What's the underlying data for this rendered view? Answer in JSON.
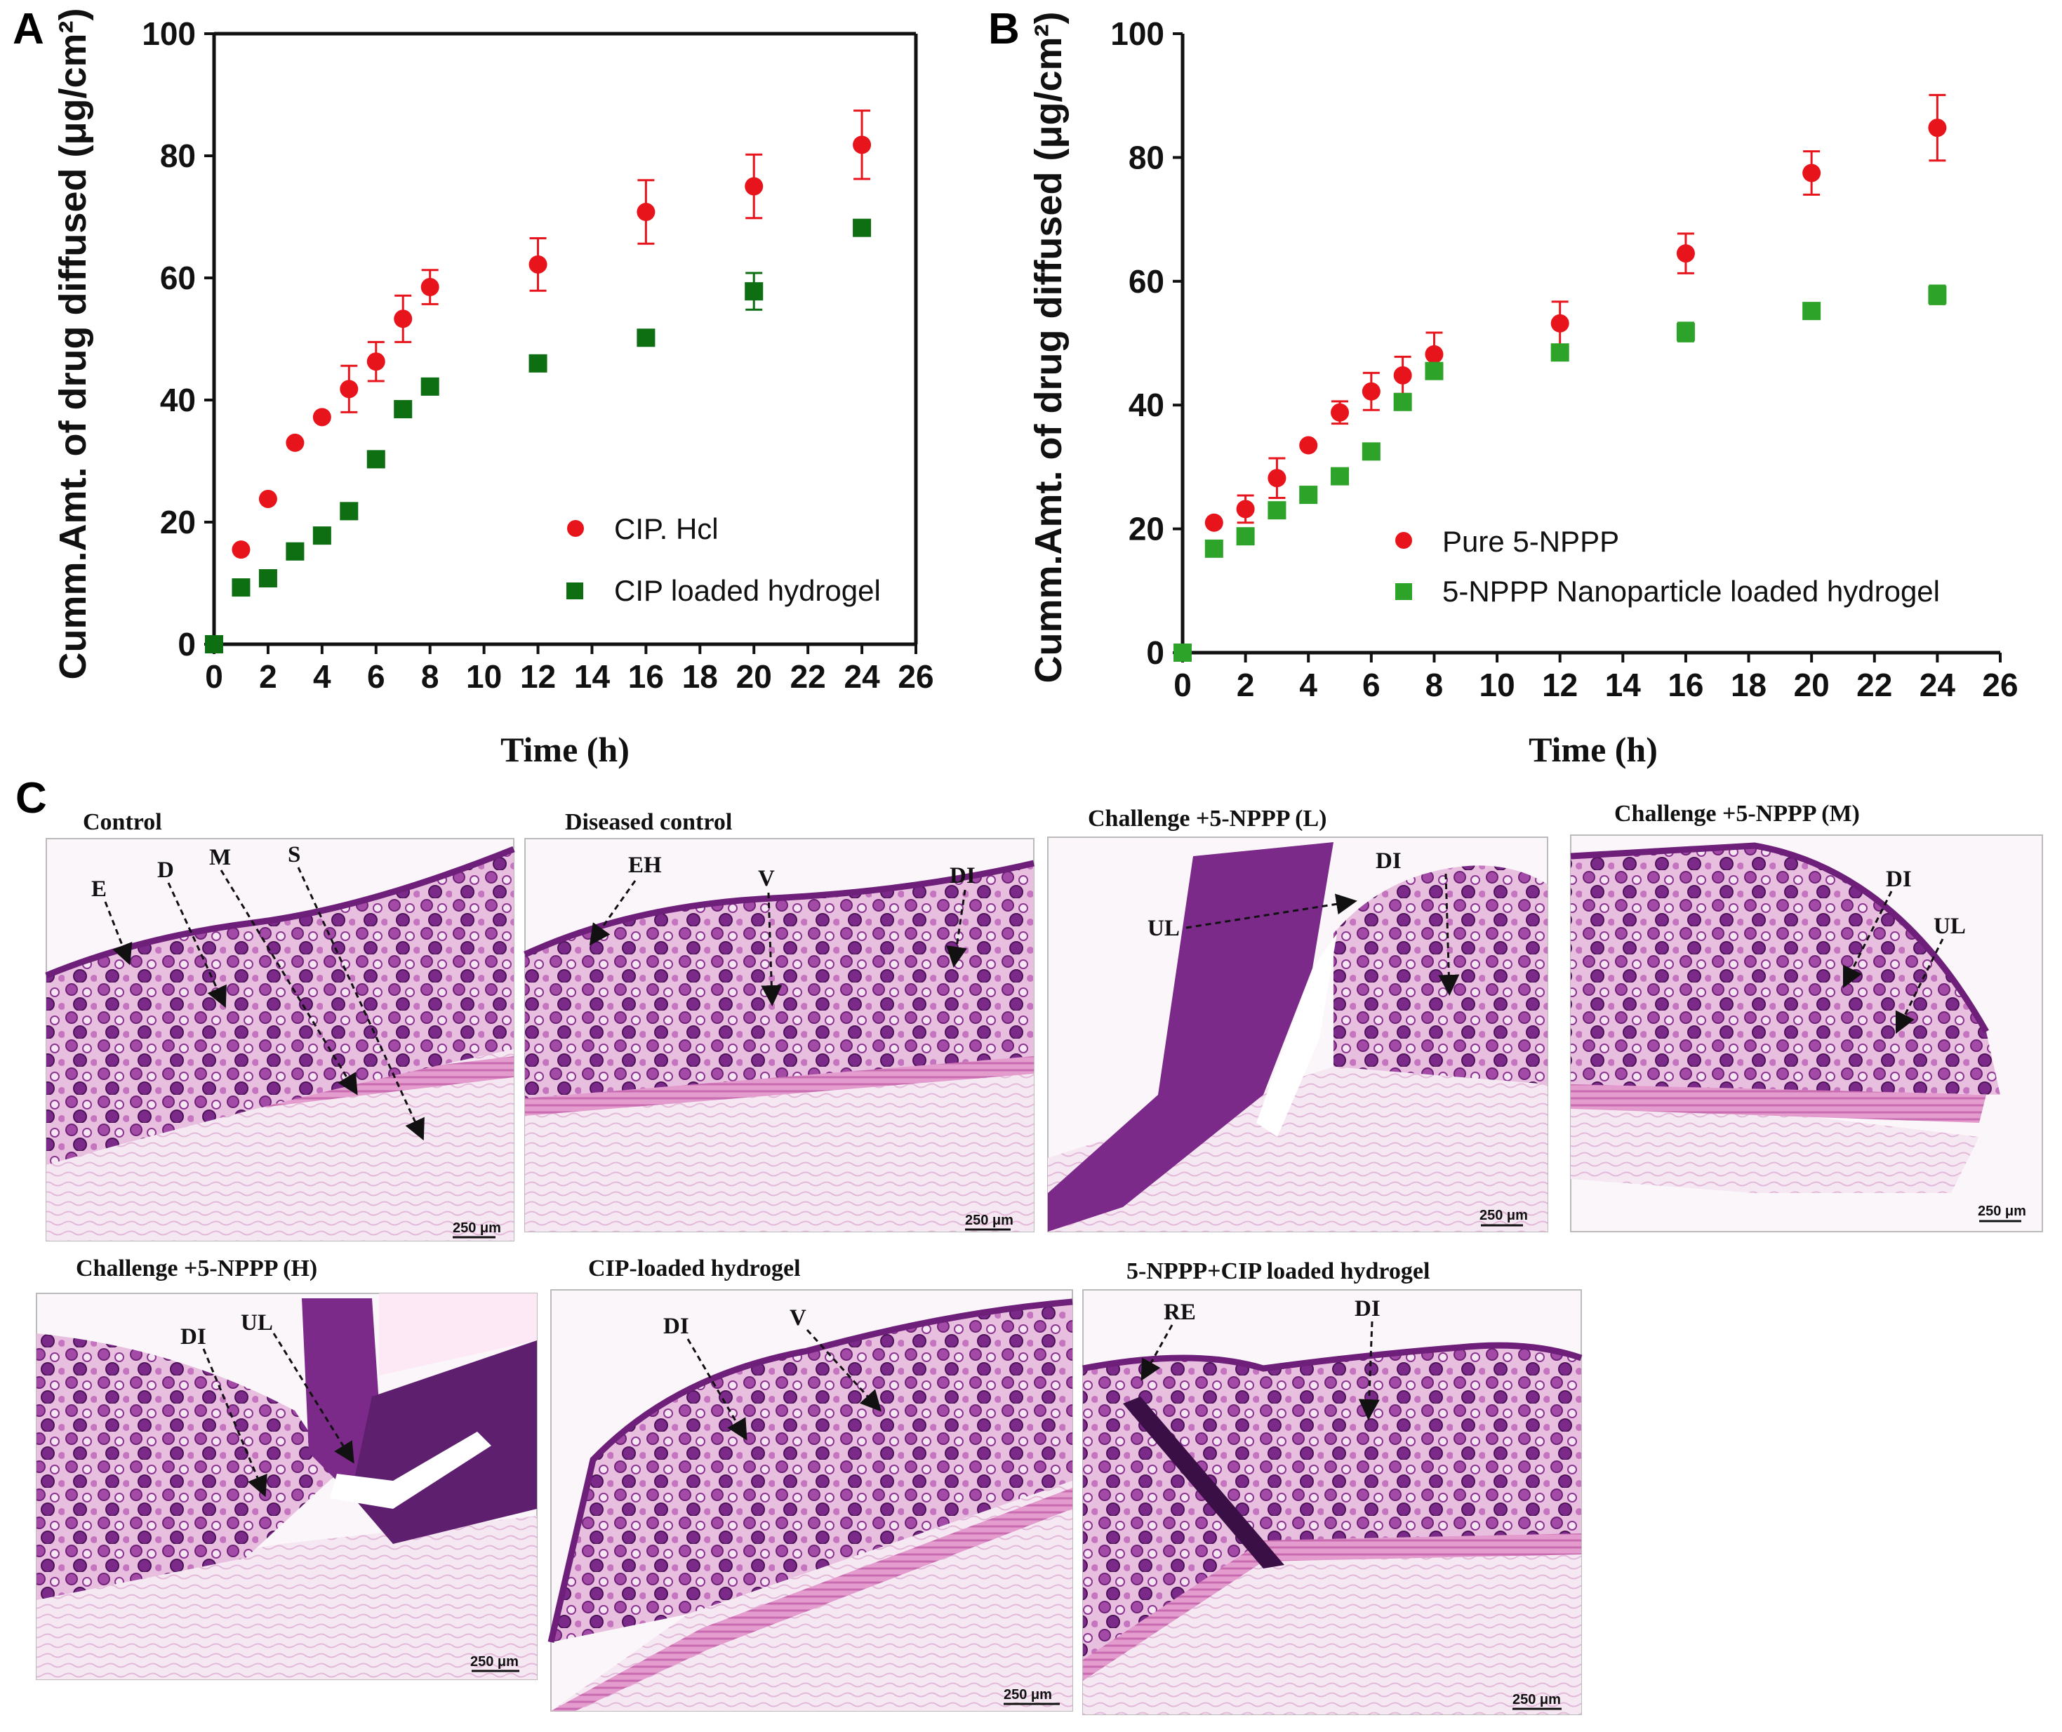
{
  "panel_labels": {
    "a": "A",
    "b": "B",
    "c": "C"
  },
  "chart_data": [
    {
      "type": "scatter",
      "panel": "A",
      "xlabel": "Time (h)",
      "ylabel": "Cumm.Amt. of drug diffused (μg/cm²)",
      "xlim": [
        0,
        26
      ],
      "ylim": [
        0,
        100
      ],
      "xticks": [
        0,
        2,
        4,
        6,
        8,
        10,
        12,
        14,
        16,
        18,
        20,
        22,
        24,
        26
      ],
      "yticks": [
        0,
        20,
        40,
        60,
        80,
        100
      ],
      "legend_position": "center-right",
      "series": [
        {
          "name": "CIP. Hcl",
          "marker": "circle",
          "color": "#e8141b",
          "x": [
            0,
            1,
            2,
            3,
            4,
            5,
            6,
            7,
            8,
            12,
            16,
            20,
            24
          ],
          "y": [
            0,
            15.5,
            23.8,
            33,
            37.2,
            41.8,
            46.3,
            53.3,
            58.5,
            62.2,
            70.8,
            75,
            81.8
          ],
          "err": [
            0,
            0,
            0,
            0,
            0,
            3.8,
            3.2,
            3.8,
            2.8,
            4.3,
            5.2,
            5.2,
            5.6
          ]
        },
        {
          "name": "CIP loaded hydrogel",
          "marker": "square",
          "color": "#0d6e12",
          "x": [
            0,
            1,
            2,
            3,
            4,
            5,
            6,
            7,
            8,
            12,
            16,
            20,
            24
          ],
          "y": [
            0,
            9.3,
            10.8,
            15.2,
            17.8,
            21.8,
            30.3,
            38.5,
            42.2,
            46,
            50.2,
            57.8,
            68.2
          ],
          "err": [
            0,
            0,
            0,
            0,
            0,
            0,
            0,
            0,
            0,
            0,
            0,
            3,
            0
          ]
        }
      ]
    },
    {
      "type": "scatter",
      "panel": "B",
      "xlabel": "Time (h)",
      "ylabel": "Cumm.Amt. of drug diffused (μg/cm²)",
      "xlim": [
        0,
        26
      ],
      "ylim": [
        0,
        100
      ],
      "xticks": [
        0,
        2,
        4,
        6,
        8,
        10,
        12,
        14,
        16,
        18,
        20,
        22,
        24,
        26
      ],
      "yticks": [
        0,
        20,
        40,
        60,
        80,
        100
      ],
      "legend_position": "bottom-right",
      "series": [
        {
          "name": "Pure 5-NPPP",
          "marker": "circle",
          "color": "#e8141b",
          "x": [
            0,
            1,
            2,
            3,
            4,
            5,
            6,
            7,
            8,
            12,
            16,
            20,
            24
          ],
          "y": [
            0,
            21,
            23.2,
            28.2,
            33.5,
            38.8,
            42.2,
            44.8,
            48.2,
            53.2,
            64.5,
            77.5,
            84.8
          ],
          "err": [
            0,
            0,
            2.2,
            3.2,
            0,
            1.8,
            3,
            3,
            3.5,
            3.5,
            3.2,
            3.5,
            5.3
          ]
        },
        {
          "name": "5-NPPP Nanoparticle loaded hydrogel",
          "marker": "square",
          "color": "#2ea32a",
          "x": [
            0,
            1,
            2,
            3,
            4,
            5,
            6,
            7,
            8,
            12,
            16,
            20,
            24
          ],
          "y": [
            0,
            16.8,
            18.8,
            23,
            25.5,
            28.5,
            32.5,
            40.5,
            45.5,
            48.5,
            51.8,
            55.2,
            57.8
          ],
          "err": [
            0,
            0,
            0,
            0,
            0,
            0,
            0,
            0,
            0,
            0,
            1.5,
            0,
            1.5
          ]
        }
      ]
    }
  ],
  "histology": {
    "scale_bar": "250 μm",
    "panels": [
      {
        "title": "Control",
        "labels": [
          "E",
          "D",
          "M",
          "S"
        ]
      },
      {
        "title": "Diseased control",
        "labels": [
          "EH",
          "V",
          "DI"
        ]
      },
      {
        "title": "Challenge +5-NPPP (L)",
        "labels": [
          "UL",
          "DI"
        ]
      },
      {
        "title": "Challenge +5-NPPP (M)",
        "labels": [
          "DI",
          "UL"
        ]
      },
      {
        "title": "Challenge +5-NPPP (H)",
        "labels": [
          "DI",
          "UL"
        ]
      },
      {
        "title": "CIP-loaded hydrogel",
        "labels": [
          "DI",
          "V"
        ]
      },
      {
        "title": "5-NPPP+CIP loaded hydrogel",
        "labels": [
          "RE",
          "DI"
        ]
      }
    ]
  },
  "colors": {
    "red": "#e8141b",
    "dark_green": "#0d6e12",
    "green": "#2ea32a",
    "tissue_light": "#efcfe6",
    "tissue_mid": "#d58ac4",
    "tissue_dark": "#7b2a8a",
    "stroma": "#f6e8f2"
  }
}
